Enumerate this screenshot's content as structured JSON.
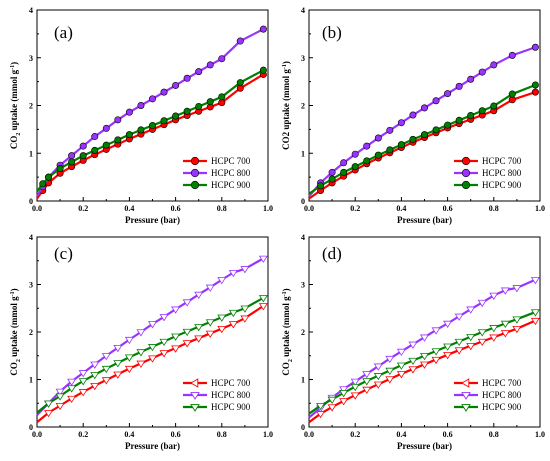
{
  "chart_data": [
    {
      "id": "a",
      "type": "line",
      "panel_label": "(a)",
      "xlabel": "Pressure (bar)",
      "ylabel": "CO2 uptake (mmol g-1)",
      "ylabel_parts": {
        "pre": "CO",
        "sub": "2",
        "mid": " uptake (mmol g",
        "sup": "-1",
        "post": ")"
      },
      "xlim": [
        0,
        1.0
      ],
      "ylim": [
        0,
        4
      ],
      "xticks": [
        "0.0",
        "0.2",
        "0.4",
        "0.6",
        "0.8",
        "1.0"
      ],
      "yticks": [
        "0",
        "1",
        "2",
        "3",
        "4"
      ],
      "marker": "circle",
      "legend": "bottom-right",
      "x": [
        0.0,
        0.025,
        0.05,
        0.1,
        0.15,
        0.2,
        0.25,
        0.3,
        0.35,
        0.4,
        0.45,
        0.5,
        0.55,
        0.6,
        0.65,
        0.7,
        0.75,
        0.8,
        0.88,
        0.98
      ],
      "series": [
        {
          "name": "HCPC 700",
          "color": "#ff0000",
          "values": [
            0.05,
            0.22,
            0.38,
            0.58,
            0.72,
            0.85,
            0.97,
            1.08,
            1.19,
            1.3,
            1.4,
            1.5,
            1.6,
            1.7,
            1.79,
            1.88,
            1.97,
            2.06,
            2.36,
            2.65
          ]
        },
        {
          "name": "HCPC 800",
          "color": "#9933ff",
          "values": [
            0.1,
            0.3,
            0.5,
            0.75,
            0.95,
            1.15,
            1.35,
            1.52,
            1.7,
            1.86,
            2.0,
            2.14,
            2.28,
            2.42,
            2.57,
            2.71,
            2.85,
            2.98,
            3.35,
            3.6
          ]
        },
        {
          "name": "HCPC 900",
          "color": "#008000",
          "values": [
            0.2,
            0.36,
            0.5,
            0.68,
            0.82,
            0.95,
            1.06,
            1.17,
            1.28,
            1.39,
            1.49,
            1.58,
            1.68,
            1.78,
            1.88,
            1.98,
            2.08,
            2.18,
            2.48,
            2.74
          ]
        }
      ]
    },
    {
      "id": "b",
      "type": "line",
      "panel_label": "(b)",
      "xlabel": "Pressure (bar)",
      "ylabel": "CO2 uptake (mmol g-1)",
      "ylabel_parts": {
        "pre": "CO2",
        "sub": "",
        "mid": " uptake (mmol g",
        "sup": "-1",
        "post": ")"
      },
      "xlim": [
        0,
        1.0
      ],
      "ylim": [
        0,
        4
      ],
      "xticks": [
        "0.0",
        "0.2",
        "0.4",
        "0.6",
        "0.8",
        "1.0"
      ],
      "yticks": [
        "0",
        "1",
        "2",
        "3",
        "4"
      ],
      "marker": "circle",
      "legend": "bottom-right",
      "x": [
        0.0,
        0.05,
        0.1,
        0.15,
        0.2,
        0.25,
        0.3,
        0.35,
        0.4,
        0.45,
        0.5,
        0.55,
        0.6,
        0.65,
        0.7,
        0.75,
        0.8,
        0.88,
        0.98
      ],
      "series": [
        {
          "name": "HCPC 700",
          "color": "#ff0000",
          "values": [
            0.05,
            0.22,
            0.38,
            0.52,
            0.65,
            0.78,
            0.9,
            1.01,
            1.12,
            1.23,
            1.33,
            1.43,
            1.53,
            1.62,
            1.71,
            1.8,
            1.89,
            2.12,
            2.28
          ]
        },
        {
          "name": "HCPC 800",
          "color": "#9933ff",
          "values": [
            0.1,
            0.38,
            0.6,
            0.8,
            0.98,
            1.15,
            1.32,
            1.48,
            1.64,
            1.8,
            1.95,
            2.1,
            2.25,
            2.4,
            2.55,
            2.7,
            2.85,
            3.05,
            3.22
          ]
        },
        {
          "name": "HCPC 900",
          "color": "#008000",
          "values": [
            0.15,
            0.32,
            0.46,
            0.6,
            0.72,
            0.84,
            0.96,
            1.07,
            1.18,
            1.29,
            1.39,
            1.49,
            1.59,
            1.69,
            1.79,
            1.89,
            1.99,
            2.24,
            2.43
          ]
        }
      ]
    },
    {
      "id": "c",
      "type": "line",
      "panel_label": "(c)",
      "xlabel": "Pressure (bar)",
      "ylabel": "CO2 uptake (mmol g-1)",
      "ylabel_parts": {
        "pre": "CO",
        "sub": "2",
        "mid": " uptake (mmol g",
        "sup": "-1",
        "post": ")"
      },
      "xlim": [
        0,
        1.0
      ],
      "ylim": [
        0,
        4
      ],
      "xticks": [
        "0.0",
        "0.2",
        "0.4",
        "0.6",
        "0.8",
        "1.0"
      ],
      "yticks": [
        "0",
        "1",
        "2",
        "3",
        "4"
      ],
      "marker": "triangle",
      "legend": "bottom-right",
      "x": [
        0.0,
        0.05,
        0.1,
        0.15,
        0.2,
        0.25,
        0.3,
        0.35,
        0.4,
        0.45,
        0.5,
        0.55,
        0.6,
        0.65,
        0.7,
        0.75,
        0.8,
        0.85,
        0.9,
        0.98
      ],
      "series": [
        {
          "name": "HCPC 700",
          "color": "#ff0000",
          "values": [
            0.1,
            0.3,
            0.45,
            0.6,
            0.74,
            0.87,
            0.99,
            1.11,
            1.23,
            1.34,
            1.45,
            1.56,
            1.66,
            1.77,
            1.87,
            1.97,
            2.07,
            2.17,
            2.29,
            2.55
          ]
        },
        {
          "name": "HCPC 800",
          "color": "#9933ff",
          "values": [
            0.25,
            0.5,
            0.75,
            0.96,
            1.14,
            1.32,
            1.5,
            1.67,
            1.84,
            2.0,
            2.17,
            2.32,
            2.48,
            2.63,
            2.79,
            2.94,
            3.1,
            3.25,
            3.33,
            3.55
          ]
        },
        {
          "name": "HCPC 900",
          "color": "#008000",
          "values": [
            0.3,
            0.5,
            0.65,
            0.82,
            0.97,
            1.1,
            1.23,
            1.35,
            1.47,
            1.58,
            1.69,
            1.8,
            1.91,
            2.01,
            2.11,
            2.21,
            2.31,
            2.41,
            2.5,
            2.72
          ]
        }
      ]
    },
    {
      "id": "d",
      "type": "line",
      "panel_label": "(d)",
      "xlabel": "Pressure (bar)",
      "ylabel": "CO2 uptake (mmol g-1)",
      "ylabel_parts": {
        "pre": "CO",
        "sub": "2",
        "mid": " uptake (mmol g",
        "sup": "-1",
        "post": ")"
      },
      "xlim": [
        0,
        1.0
      ],
      "ylim": [
        0,
        4
      ],
      "xticks": [
        "0.0",
        "0.2",
        "0.4",
        "0.6",
        "0.8",
        "1.0"
      ],
      "yticks": [
        "0",
        "1",
        "2",
        "3",
        "4"
      ],
      "marker": "triangle",
      "legend": "bottom-right",
      "x": [
        0.0,
        0.05,
        0.1,
        0.15,
        0.2,
        0.25,
        0.3,
        0.35,
        0.4,
        0.45,
        0.5,
        0.55,
        0.6,
        0.65,
        0.7,
        0.75,
        0.8,
        0.85,
        0.9,
        0.98
      ],
      "series": [
        {
          "name": "HCPC 700",
          "color": "#ff0000",
          "values": [
            0.1,
            0.28,
            0.42,
            0.55,
            0.67,
            0.79,
            0.9,
            1.01,
            1.12,
            1.22,
            1.32,
            1.42,
            1.52,
            1.62,
            1.71,
            1.8,
            1.89,
            1.98,
            2.07,
            2.24
          ]
        },
        {
          "name": "HCPC 800",
          "color": "#9933ff",
          "values": [
            0.2,
            0.4,
            0.62,
            0.8,
            0.96,
            1.12,
            1.28,
            1.44,
            1.59,
            1.74,
            1.89,
            2.04,
            2.18,
            2.33,
            2.48,
            2.62,
            2.77,
            2.88,
            2.93,
            3.1
          ]
        },
        {
          "name": "HCPC 900",
          "color": "#008000",
          "values": [
            0.28,
            0.45,
            0.58,
            0.72,
            0.85,
            0.97,
            1.08,
            1.19,
            1.3,
            1.4,
            1.5,
            1.6,
            1.7,
            1.8,
            1.9,
            2.0,
            2.09,
            2.18,
            2.27,
            2.42
          ]
        }
      ]
    }
  ]
}
